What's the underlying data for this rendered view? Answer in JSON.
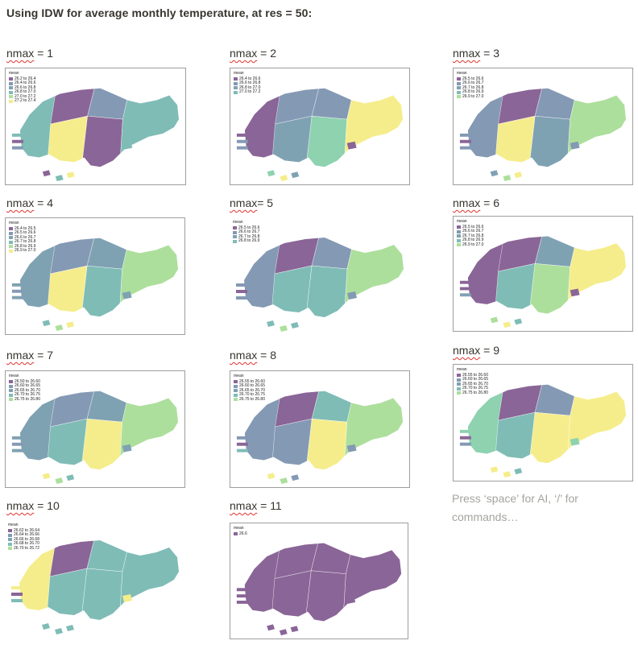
{
  "heading": "Using IDW for average monthly temperature, at res = 50:",
  "placeholder": "Press ‘space’ for AI, ‘/’ for commands…",
  "colors": {
    "purple": "#8a6597",
    "slate": "#8499b4",
    "steel": "#7fa2b3",
    "teal": "#7fbcb6",
    "mint": "#8ed2b0",
    "green": "#addf9c",
    "yellow": "#f5ed8b"
  },
  "plots": [
    {
      "kw": "nmax",
      "rest": " = 1",
      "legend_title": "mean",
      "legend": [
        "26.2 to 26.4",
        "26.4 to 26.6",
        "26.6 to 26.8",
        "26.8 to 27.0",
        "27.0 to 27.2",
        "27.2 to 27.4"
      ],
      "regions": [
        "teal",
        "purple",
        "slate",
        "purple",
        "teal",
        "yellow"
      ]
    },
    {
      "kw": "nmax",
      "rest": " = 2",
      "legend_title": "mean",
      "legend": [
        "26.4 to 26.6",
        "26.6 to 26.8",
        "26.8 to 27.0",
        "27.0 to 27.2"
      ],
      "regions": [
        "purple",
        "slate",
        "slate",
        "mint",
        "yellow",
        "steel"
      ]
    },
    {
      "kw": "nmax",
      "rest": " = 3",
      "legend_title": "mean",
      "legend": [
        "26.5 to 26.6",
        "26.6 to 26.7",
        "26.7 to 26.8",
        "26.8 to 26.9",
        "26.9 to 27.0"
      ],
      "regions": [
        "slate",
        "purple",
        "slate",
        "steel",
        "green",
        "yellow"
      ]
    },
    {
      "kw": "nmax",
      "rest": " = 4",
      "legend_title": "mean",
      "legend": [
        "26.4 to 26.5",
        "26.5 to 26.6",
        "26.6 to 26.7",
        "26.7 to 26.8",
        "26.8 to 26.9",
        "26.9 to 27.0"
      ],
      "regions": [
        "steel",
        "slate",
        "steel",
        "teal",
        "green",
        "yellow"
      ]
    },
    {
      "kw": "nmax",
      "rest": "= 5",
      "legend_title": "mean",
      "legend": [
        "26.5 to 26.6",
        "26.6 to 26.7",
        "26.7 to 26.8",
        "26.8 to 26.9"
      ],
      "regions": [
        "slate",
        "purple",
        "slate",
        "teal",
        "green",
        "teal"
      ]
    },
    {
      "kw": "nmax",
      "rest": " = 6",
      "legend_title": "mean",
      "legend": [
        "26.5 to 26.6",
        "26.6 to 26.7",
        "26.7 to 26.8",
        "26.8 to 26.9",
        "26.9 to 27.0"
      ],
      "regions": [
        "purple",
        "purple",
        "steel",
        "green",
        "yellow",
        "teal"
      ]
    },
    {
      "kw": "nmax",
      "rest": " = 7",
      "legend_title": "mean",
      "legend": [
        "26.50 to 26.60",
        "26.60 to 26.65",
        "26.65 to 26.70",
        "26.70 to 26.75",
        "26.75 to 26.80"
      ],
      "regions": [
        "steel",
        "slate",
        "steel",
        "yellow",
        "green",
        "teal"
      ]
    },
    {
      "kw": "nmax",
      "rest": " = 8",
      "legend_title": "mean",
      "legend": [
        "26.55 to 26.60",
        "26.60 to 26.65",
        "26.65 to 26.70",
        "26.70 to 26.75",
        "26.75 to 26.80"
      ],
      "regions": [
        "slate",
        "purple",
        "teal",
        "yellow",
        "green",
        "slate"
      ]
    },
    {
      "kw": "nmax",
      "rest": " = 9",
      "legend_title": "mean",
      "legend": [
        "26.55 to 26.60",
        "26.60 to 26.65",
        "26.65 to 26.70",
        "26.70 to 26.75",
        "26.75 to 26.80"
      ],
      "regions": [
        "mint",
        "purple",
        "slate",
        "yellow",
        "yellow",
        "teal"
      ]
    },
    {
      "kw": "nmax",
      "rest": " = 10",
      "legend_title": "mean",
      "legend": [
        "26.62 to 26.64",
        "26.64 to 26.66",
        "26.66 to 26.68",
        "26.68 to 26.70",
        "26.70 to 26.72"
      ],
      "regions": [
        "yellow",
        "purple",
        "teal",
        "teal",
        "teal",
        "teal"
      ]
    },
    {
      "kw": "nmax",
      "rest": " = 11",
      "legend_title": "mean",
      "legend": [
        "26.6"
      ],
      "regions": [
        "purple",
        "purple",
        "purple",
        "purple",
        "purple",
        "purple"
      ]
    }
  ]
}
